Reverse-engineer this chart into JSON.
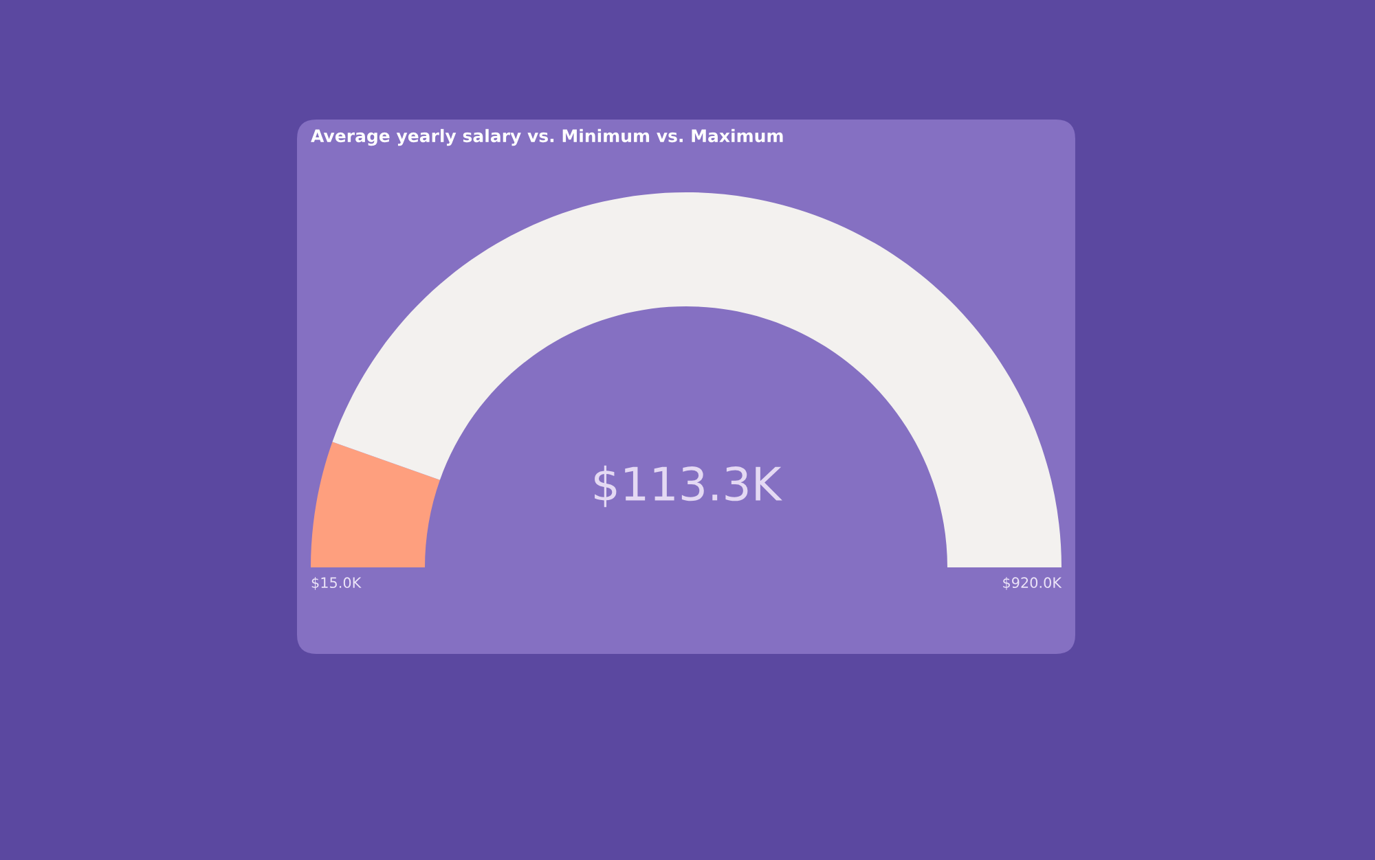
{
  "chart_data": {
    "type": "donut",
    "title": "Average yearly salary vs. Minimum vs. Maximum",
    "categories": [
      null,
      null
    ],
    "values": [
      10.86,
      89.14
    ],
    "colors": [
      "#fe9f7e",
      "#f3f1ef"
    ],
    "annotations": [
      "$113.3K",
      "$15.0K",
      "$920.0K"
    ]
  }
}
